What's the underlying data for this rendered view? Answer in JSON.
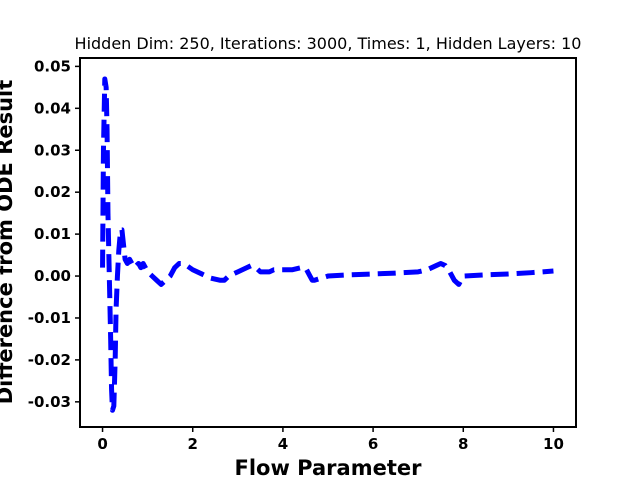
{
  "chart_data": {
    "type": "line",
    "title": "Hidden Dim: 250, Iterations: 3000, Times: 1, Hidden Layers: 10",
    "xlabel": "Flow Parameter",
    "ylabel": "Difference from ODE Result",
    "xlim": [
      -0.5,
      10.5
    ],
    "ylim": [
      -0.036,
      0.052
    ],
    "xticks": [
      0,
      2,
      4,
      6,
      8,
      10
    ],
    "yticks": [
      -0.03,
      -0.02,
      -0.01,
      0.0,
      0.01,
      0.02,
      0.03,
      0.04,
      0.05
    ],
    "grid": false,
    "series": [
      {
        "color": "#0000ff",
        "style": "dashed",
        "x": [
          0.0,
          0.02,
          0.05,
          0.08,
          0.1,
          0.12,
          0.15,
          0.18,
          0.2,
          0.22,
          0.25,
          0.28,
          0.3,
          0.33,
          0.36,
          0.4,
          0.43,
          0.46,
          0.5,
          0.55,
          0.6,
          0.7,
          0.8,
          0.85,
          0.9,
          1.0,
          1.1,
          1.2,
          1.3,
          1.4,
          1.5,
          1.6,
          1.7,
          1.8,
          2.0,
          2.2,
          2.4,
          2.6,
          2.7,
          2.8,
          3.0,
          3.2,
          3.3,
          3.4,
          3.5,
          3.6,
          3.7,
          3.8,
          4.0,
          4.2,
          4.4,
          4.5,
          4.6,
          4.65,
          4.7,
          5.0,
          5.5,
          6.0,
          6.5,
          7.0,
          7.2,
          7.4,
          7.5,
          7.6,
          7.7,
          7.8,
          7.9,
          8.0,
          8.5,
          9.0,
          9.5,
          10.0
        ],
        "y": [
          0.002,
          0.03,
          0.047,
          0.045,
          0.035,
          0.015,
          0.0,
          -0.015,
          -0.027,
          -0.032,
          -0.031,
          -0.02,
          -0.008,
          0.0,
          0.006,
          0.011,
          0.011,
          0.008,
          0.004,
          0.003,
          0.004,
          0.002,
          0.003,
          0.002,
          0.003,
          0.001,
          0.0,
          -0.001,
          -0.002,
          -0.001,
          0.0,
          0.002,
          0.003,
          0.003,
          0.0015,
          0.0005,
          -0.0005,
          -0.001,
          -0.001,
          0.0,
          0.001,
          0.002,
          0.0025,
          0.002,
          0.001,
          0.001,
          0.001,
          0.0015,
          0.0015,
          0.0015,
          0.002,
          0.002,
          0.0,
          -0.001,
          -0.001,
          0.0,
          0.0003,
          0.0005,
          0.0007,
          0.001,
          0.0015,
          0.0025,
          0.003,
          0.0025,
          0.001,
          -0.001,
          -0.002,
          0.0,
          0.0003,
          0.0005,
          0.0008,
          0.0012
        ]
      }
    ]
  }
}
